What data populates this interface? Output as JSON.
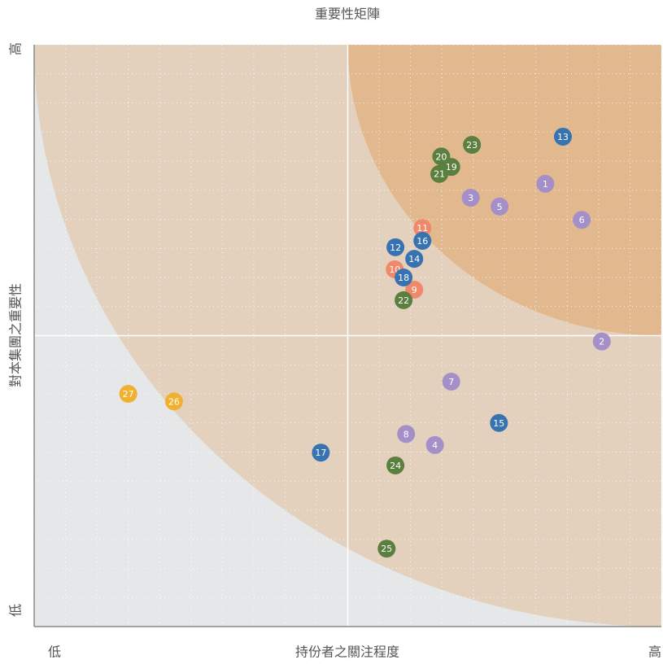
{
  "chart_data": {
    "type": "scatter",
    "title": "重要性矩陣",
    "x_label": "持份者之關注程度",
    "y_label": "對本集團之重要性",
    "x_low": "低",
    "x_high": "高",
    "y_low": "低",
    "y_high": "高",
    "xlim": [
      0,
      100
    ],
    "ylim": [
      0,
      100
    ],
    "xticks": [
      0,
      5,
      10,
      15,
      20,
      25,
      30,
      35,
      40,
      45,
      50,
      55,
      60,
      65,
      70,
      75,
      80,
      85,
      90,
      95,
      100
    ],
    "yticks": [
      0,
      5,
      10,
      15,
      20,
      25,
      30,
      35,
      40,
      45,
      50,
      55,
      60,
      65,
      70,
      75,
      80,
      85,
      90,
      95,
      100
    ],
    "grid": true,
    "points": [
      {
        "label": "1",
        "x": 81.5,
        "y": 76.1,
        "color": "#a58fc9"
      },
      {
        "label": "2",
        "x": 90.5,
        "y": 49.0,
        "color": "#a58fc9"
      },
      {
        "label": "3",
        "x": 69.6,
        "y": 73.7,
        "color": "#a58fc9"
      },
      {
        "label": "4",
        "x": 63.9,
        "y": 31.2,
        "color": "#a58fc9"
      },
      {
        "label": "5",
        "x": 74.2,
        "y": 72.2,
        "color": "#a58fc9"
      },
      {
        "label": "6",
        "x": 87.3,
        "y": 69.9,
        "color": "#a58fc9"
      },
      {
        "label": "7",
        "x": 66.5,
        "y": 42.1,
        "color": "#a58fc9"
      },
      {
        "label": "8",
        "x": 59.3,
        "y": 33.1,
        "color": "#a58fc9"
      },
      {
        "label": "9",
        "x": 60.6,
        "y": 57.9,
        "color": "#f0896b"
      },
      {
        "label": "10",
        "x": 57.5,
        "y": 61.4,
        "color": "#f0896b"
      },
      {
        "label": "11",
        "x": 61.9,
        "y": 68.5,
        "color": "#f0896b"
      },
      {
        "label": "12",
        "x": 57.6,
        "y": 65.2,
        "color": "#3773b0"
      },
      {
        "label": "13",
        "x": 84.3,
        "y": 84.2,
        "color": "#3773b0"
      },
      {
        "label": "14",
        "x": 60.6,
        "y": 63.2,
        "color": "#3773b0"
      },
      {
        "label": "15",
        "x": 74.1,
        "y": 35.0,
        "color": "#3773b0"
      },
      {
        "label": "16",
        "x": 61.9,
        "y": 66.3,
        "color": "#3773b0"
      },
      {
        "label": "17",
        "x": 45.7,
        "y": 29.9,
        "color": "#3773b0"
      },
      {
        "label": "18",
        "x": 58.9,
        "y": 60.0,
        "color": "#3773b0"
      },
      {
        "label": "19",
        "x": 66.5,
        "y": 79.0,
        "color": "#5a7f3f"
      },
      {
        "label": "20",
        "x": 64.9,
        "y": 80.8,
        "color": "#5a7f3f"
      },
      {
        "label": "21",
        "x": 64.6,
        "y": 77.8,
        "color": "#5a7f3f"
      },
      {
        "label": "22",
        "x": 58.9,
        "y": 56.1,
        "color": "#5a7f3f"
      },
      {
        "label": "23",
        "x": 69.8,
        "y": 82.8,
        "color": "#5a7f3f"
      },
      {
        "label": "24",
        "x": 57.6,
        "y": 27.7,
        "color": "#5a7f3f"
      },
      {
        "label": "25",
        "x": 56.2,
        "y": 13.4,
        "color": "#5a7f3f"
      },
      {
        "label": "26",
        "x": 22.3,
        "y": 38.7,
        "color": "#f0b030"
      },
      {
        "label": "27",
        "x": 15.0,
        "y": 40.0,
        "color": "#f0b030"
      }
    ]
  }
}
